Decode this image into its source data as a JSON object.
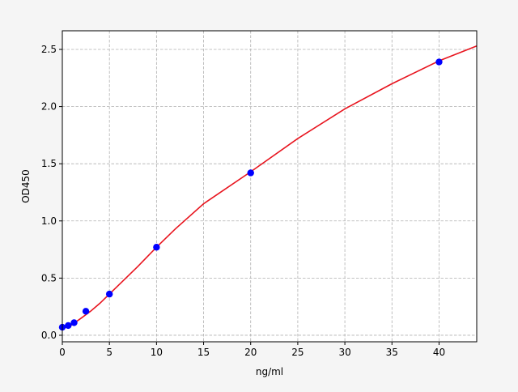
{
  "chart_data": {
    "type": "scatter",
    "title": "",
    "xlabel": "ng/ml",
    "ylabel": "OD450",
    "xlim": [
      0,
      44
    ],
    "ylim": [
      -0.057,
      2.663
    ],
    "grid": true,
    "xticks": [
      0,
      5,
      10,
      15,
      20,
      25,
      30,
      35,
      40
    ],
    "xtick_labels": [
      "0",
      "5",
      "10",
      "15",
      "20",
      "25",
      "30",
      "35",
      "40"
    ],
    "yticks": [
      0,
      0.5,
      1,
      1.5,
      2,
      2.5
    ],
    "ytick_labels": [
      "0.0",
      "0.5",
      "1.0",
      "1.5",
      "2.0",
      "2.5"
    ],
    "points": {
      "color": "#0000ff",
      "x": [
        0,
        0.625,
        1.25,
        2.5,
        5,
        10,
        20,
        40
      ],
      "y": [
        0.07,
        0.085,
        0.11,
        0.21,
        0.36,
        0.77,
        1.42,
        2.39
      ]
    },
    "fit_curve": {
      "color": "#e8141e",
      "x": [
        0,
        1,
        2,
        3,
        4,
        5,
        6,
        8,
        10,
        12,
        15,
        20,
        25,
        30,
        35,
        40,
        44
      ],
      "y": [
        0.06,
        0.09,
        0.15,
        0.21,
        0.28,
        0.36,
        0.44,
        0.6,
        0.77,
        0.93,
        1.15,
        1.43,
        1.72,
        1.98,
        2.2,
        2.4,
        2.53
      ]
    }
  }
}
